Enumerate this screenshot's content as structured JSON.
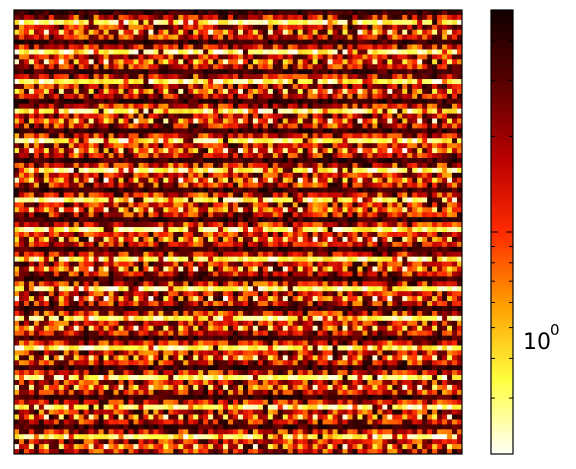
{
  "chart_data": {
    "type": "heatmap",
    "title": "",
    "xlabel": "",
    "ylabel": "",
    "colormap": "hot_r",
    "colormap_stops": [
      "#fffff8",
      "#ffff40",
      "#ffa000",
      "#ff2a00",
      "#b80000",
      "#5a0000",
      "#120000"
    ],
    "colorbar": {
      "scale": "log",
      "range": [
        0.2,
        5.0
      ],
      "tick_label_base": "10",
      "tick_label_exp": "0",
      "tick_value": 1.0,
      "minor_ticks": [
        0.3,
        0.4,
        0.5,
        0.6,
        0.7,
        0.8,
        0.9,
        2.0,
        3.0,
        4.0
      ]
    },
    "grid_rows": 90,
    "grid_cols": 90,
    "highlight_row_period": 6,
    "highlight_col_period": 3,
    "value_model": {
      "background_range": [
        0.6,
        4.5
      ],
      "bright_row_range": [
        0.2,
        0.45
      ],
      "dark_row_range": [
        2.5,
        5.0
      ],
      "dash_range": [
        0.2,
        0.5
      ]
    }
  }
}
